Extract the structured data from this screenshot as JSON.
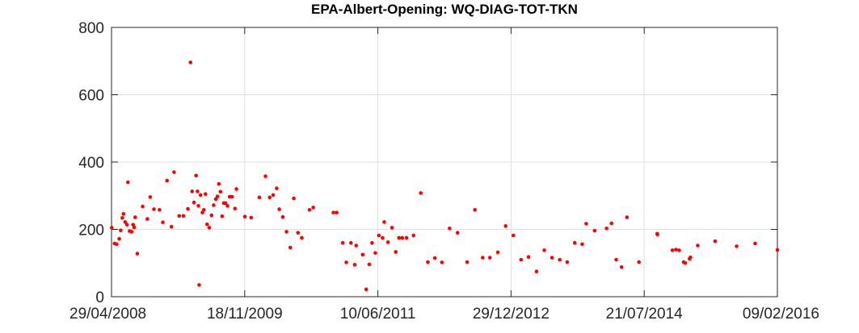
{
  "chart_data": {
    "type": "scatter",
    "title": "EPA-Albert-Opening: WQ-DIAG-TOT-TKN",
    "xlabel": "",
    "ylabel": "",
    "ylim": [
      0,
      800
    ],
    "xlim": [
      "2008-04-29",
      "2016-02-09"
    ],
    "x_ticks": [
      "29/04/2008",
      "18/11/2009",
      "10/06/2011",
      "29/12/2012",
      "21/07/2014",
      "09/02/2016"
    ],
    "y_ticks": [
      "0",
      "200",
      "400",
      "600",
      "800"
    ],
    "grid": true,
    "marker_color": "#ff0000",
    "points": [
      {
        "x": "2008-04-30",
        "y": 205
      },
      {
        "x": "2008-05-12",
        "y": 158
      },
      {
        "x": "2008-05-21",
        "y": 156
      },
      {
        "x": "2008-06-01",
        "y": 172
      },
      {
        "x": "2008-06-07",
        "y": 197
      },
      {
        "x": "2008-06-14",
        "y": 234
      },
      {
        "x": "2008-06-19",
        "y": 246
      },
      {
        "x": "2008-06-26",
        "y": 222
      },
      {
        "x": "2008-07-04",
        "y": 214
      },
      {
        "x": "2008-07-08",
        "y": 340
      },
      {
        "x": "2008-07-15",
        "y": 195
      },
      {
        "x": "2008-07-24",
        "y": 193
      },
      {
        "x": "2008-07-30",
        "y": 214
      },
      {
        "x": "2008-08-04",
        "y": 206
      },
      {
        "x": "2008-08-08",
        "y": 236
      },
      {
        "x": "2008-08-17",
        "y": 128
      },
      {
        "x": "2008-09-09",
        "y": 268
      },
      {
        "x": "2008-09-29",
        "y": 231
      },
      {
        "x": "2008-10-11",
        "y": 296
      },
      {
        "x": "2008-10-27",
        "y": 260
      },
      {
        "x": "2008-11-20",
        "y": 258
      },
      {
        "x": "2008-12-04",
        "y": 221
      },
      {
        "x": "2008-12-22",
        "y": 345
      },
      {
        "x": "2009-01-10",
        "y": 208
      },
      {
        "x": "2009-01-21",
        "y": 370
      },
      {
        "x": "2009-02-12",
        "y": 240
      },
      {
        "x": "2009-03-02",
        "y": 240
      },
      {
        "x": "2009-03-21",
        "y": 261
      },
      {
        "x": "2009-04-01",
        "y": 696
      },
      {
        "x": "2009-04-08",
        "y": 313
      },
      {
        "x": "2009-04-16",
        "y": 280
      },
      {
        "x": "2009-04-25",
        "y": 360
      },
      {
        "x": "2009-05-01",
        "y": 313
      },
      {
        "x": "2009-05-05",
        "y": 270
      },
      {
        "x": "2009-05-08",
        "y": 35
      },
      {
        "x": "2009-05-14",
        "y": 302
      },
      {
        "x": "2009-05-22",
        "y": 250
      },
      {
        "x": "2009-05-28",
        "y": 258
      },
      {
        "x": "2009-06-04",
        "y": 305
      },
      {
        "x": "2009-06-11",
        "y": 215
      },
      {
        "x": "2009-06-20",
        "y": 205
      },
      {
        "x": "2009-06-30",
        "y": 242
      },
      {
        "x": "2009-07-09",
        "y": 272
      },
      {
        "x": "2009-07-18",
        "y": 290
      },
      {
        "x": "2009-07-25",
        "y": 298
      },
      {
        "x": "2009-07-31",
        "y": 335
      },
      {
        "x": "2009-08-07",
        "y": 312
      },
      {
        "x": "2009-08-14",
        "y": 239
      },
      {
        "x": "2009-08-21",
        "y": 278
      },
      {
        "x": "2009-08-28",
        "y": 278
      },
      {
        "x": "2009-09-06",
        "y": 270
      },
      {
        "x": "2009-09-15",
        "y": 297
      },
      {
        "x": "2009-09-25",
        "y": 297
      },
      {
        "x": "2009-10-08",
        "y": 262
      },
      {
        "x": "2009-10-14",
        "y": 320
      },
      {
        "x": "2009-11-19",
        "y": 238
      },
      {
        "x": "2009-12-16",
        "y": 235
      },
      {
        "x": "2010-01-20",
        "y": 295
      },
      {
        "x": "2010-02-15",
        "y": 358
      },
      {
        "x": "2010-03-05",
        "y": 295
      },
      {
        "x": "2010-03-20",
        "y": 302
      },
      {
        "x": "2010-04-04",
        "y": 322
      },
      {
        "x": "2010-04-15",
        "y": 260
      },
      {
        "x": "2010-04-30",
        "y": 237
      },
      {
        "x": "2010-05-16",
        "y": 193
      },
      {
        "x": "2010-06-01",
        "y": 146
      },
      {
        "x": "2010-06-16",
        "y": 292
      },
      {
        "x": "2010-07-04",
        "y": 190
      },
      {
        "x": "2010-07-20",
        "y": 175
      },
      {
        "x": "2010-08-22",
        "y": 258
      },
      {
        "x": "2010-09-07",
        "y": 265
      },
      {
        "x": "2010-12-02",
        "y": 250
      },
      {
        "x": "2010-12-16",
        "y": 250
      },
      {
        "x": "2011-01-11",
        "y": 160
      },
      {
        "x": "2011-01-26",
        "y": 102
      },
      {
        "x": "2011-02-15",
        "y": 160
      },
      {
        "x": "2011-03-03",
        "y": 95
      },
      {
        "x": "2011-03-09",
        "y": 152
      },
      {
        "x": "2011-04-06",
        "y": 125
      },
      {
        "x": "2011-04-21",
        "y": 22
      },
      {
        "x": "2011-05-04",
        "y": 96
      },
      {
        "x": "2011-05-16",
        "y": 160
      },
      {
        "x": "2011-05-30",
        "y": 130
      },
      {
        "x": "2011-06-14",
        "y": 182
      },
      {
        "x": "2011-06-30",
        "y": 175
      },
      {
        "x": "2011-07-07",
        "y": 222
      },
      {
        "x": "2011-07-23",
        "y": 162
      },
      {
        "x": "2011-08-09",
        "y": 205
      },
      {
        "x": "2011-08-25",
        "y": 133
      },
      {
        "x": "2011-09-08",
        "y": 175
      },
      {
        "x": "2011-09-22",
        "y": 175
      },
      {
        "x": "2011-10-10",
        "y": 175
      },
      {
        "x": "2011-11-09",
        "y": 182
      },
      {
        "x": "2011-12-10",
        "y": 308
      },
      {
        "x": "2012-01-09",
        "y": 103
      },
      {
        "x": "2012-02-08",
        "y": 115
      },
      {
        "x": "2012-03-09",
        "y": 102
      },
      {
        "x": "2012-04-11",
        "y": 203
      },
      {
        "x": "2012-05-15",
        "y": 190
      },
      {
        "x": "2012-06-25",
        "y": 103
      },
      {
        "x": "2012-07-28",
        "y": 258
      },
      {
        "x": "2012-08-30",
        "y": 116
      },
      {
        "x": "2012-09-30",
        "y": 116
      },
      {
        "x": "2012-11-03",
        "y": 132
      },
      {
        "x": "2012-12-06",
        "y": 210
      },
      {
        "x": "2013-01-08",
        "y": 182
      },
      {
        "x": "2013-02-10",
        "y": 110
      },
      {
        "x": "2013-03-14",
        "y": 118
      },
      {
        "x": "2013-04-17",
        "y": 75
      },
      {
        "x": "2013-05-20",
        "y": 138
      },
      {
        "x": "2013-06-22",
        "y": 116
      },
      {
        "x": "2013-07-25",
        "y": 110
      },
      {
        "x": "2013-08-26",
        "y": 103
      },
      {
        "x": "2013-09-27",
        "y": 160
      },
      {
        "x": "2013-10-29",
        "y": 156
      },
      {
        "x": "2013-11-15",
        "y": 217
      },
      {
        "x": "2013-12-21",
        "y": 196
      },
      {
        "x": "2014-02-10",
        "y": 203
      },
      {
        "x": "2014-03-03",
        "y": 218
      },
      {
        "x": "2014-03-23",
        "y": 110
      },
      {
        "x": "2014-04-15",
        "y": 88
      },
      {
        "x": "2014-05-08",
        "y": 236
      },
      {
        "x": "2014-06-28",
        "y": 103
      },
      {
        "x": "2014-09-14",
        "y": 187
      },
      {
        "x": "2014-09-15",
        "y": 185
      },
      {
        "x": "2014-11-18",
        "y": 138
      },
      {
        "x": "2014-12-03",
        "y": 140
      },
      {
        "x": "2014-12-17",
        "y": 138
      },
      {
        "x": "2015-01-05",
        "y": 103
      },
      {
        "x": "2015-01-12",
        "y": 100
      },
      {
        "x": "2015-01-30",
        "y": 113
      },
      {
        "x": "2015-02-03",
        "y": 117
      },
      {
        "x": "2015-03-06",
        "y": 152
      },
      {
        "x": "2015-05-19",
        "y": 165
      },
      {
        "x": "2015-08-19",
        "y": 150
      },
      {
        "x": "2015-11-06",
        "y": 158
      },
      {
        "x": "2016-02-09",
        "y": 139
      }
    ]
  }
}
